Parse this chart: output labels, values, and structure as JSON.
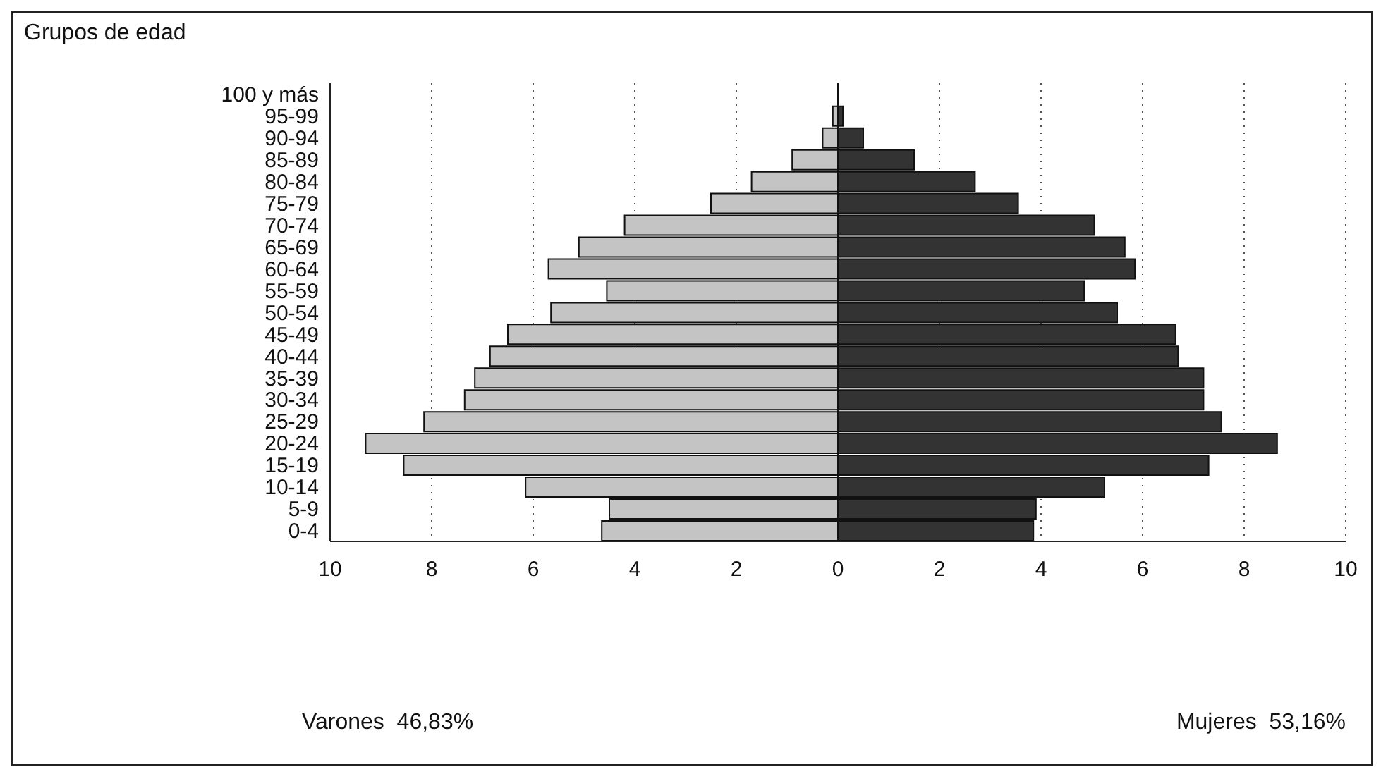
{
  "chart_data": {
    "type": "bar",
    "orientation": "horizontal",
    "stacked": true,
    "ylabel": "Grupos de edad",
    "categories": [
      "100 y más",
      "95-99",
      "90-94",
      "85-89",
      "80-84",
      "75-79",
      "70-74",
      "65-69",
      "60-64",
      "55-59",
      "50-54",
      "45-49",
      "40-44",
      "35-39",
      "30-34",
      "25-29",
      "20-24",
      "15-19",
      "10-14",
      "5-9",
      "0-4"
    ],
    "series": [
      {
        "color": "#c4c4c4",
        "values": [
          0,
          -0.1,
          -0.3,
          -0.9,
          -1.7,
          -2.5,
          -4.2,
          -5.1,
          -5.7,
          -4.55,
          -5.65,
          -6.5,
          -6.85,
          -7.15,
          -7.35,
          -8.15,
          -9.3,
          -8.55,
          -6.15,
          -4.5,
          -4.65
        ]
      },
      {
        "color": "#333333",
        "values": [
          0,
          0.1,
          0.5,
          1.5,
          2.7,
          3.55,
          5.05,
          5.65,
          5.85,
          4.85,
          5.5,
          6.65,
          6.7,
          7.2,
          7.2,
          7.55,
          8.65,
          7.3,
          5.25,
          3.9,
          3.85
        ]
      }
    ],
    "xlim": [
      -10,
      10
    ],
    "xticks": [
      {
        "value": -10,
        "label": "10"
      },
      {
        "value": -8,
        "label": "8"
      },
      {
        "value": -6,
        "label": "6"
      },
      {
        "value": -4,
        "label": "4"
      },
      {
        "value": -2,
        "label": "2"
      },
      0,
      2,
      4,
      6,
      8,
      10
    ],
    "grid": "x",
    "annotations": [
      "Varones  46,83%",
      "Mujeres  53,16%"
    ]
  }
}
